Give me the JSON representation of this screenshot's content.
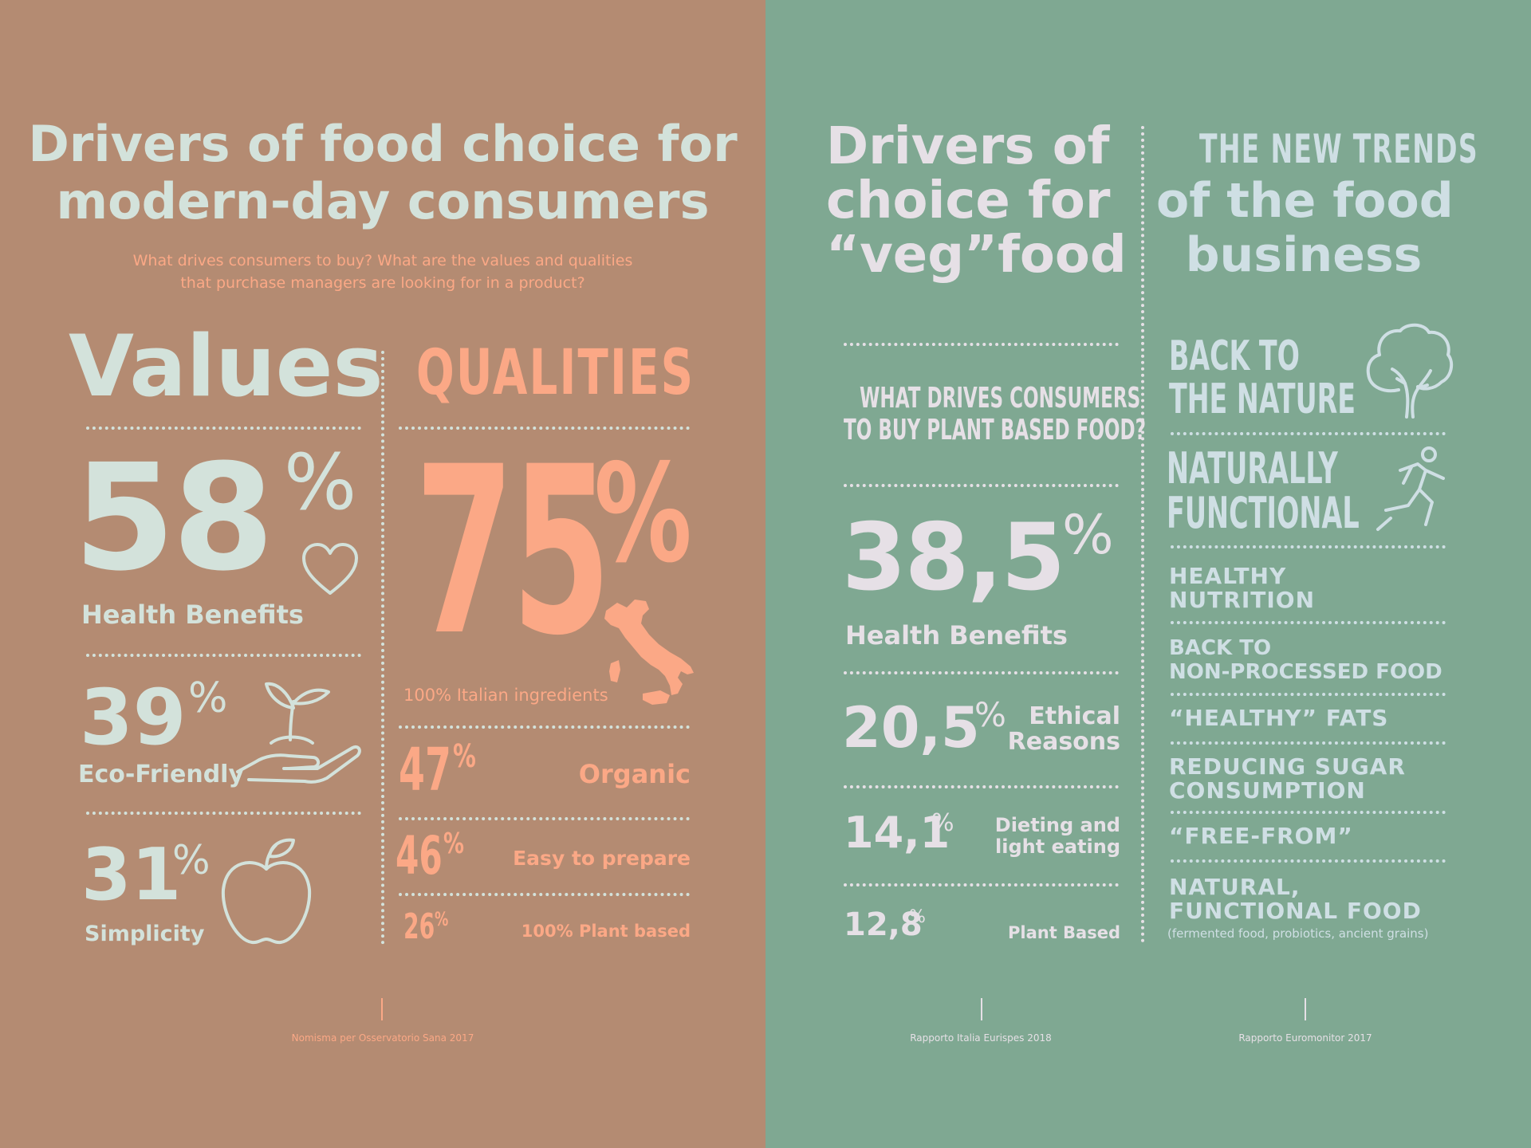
{
  "left": {
    "title_line1": "Drivers of food choice for",
    "title_line2": "modern-day consumers",
    "subtitle_line1": "What drives consumers to buy? What are the values and qualities",
    "subtitle_line2": "that purchase managers are looking for in a product?",
    "values": {
      "heading": "Values",
      "items": [
        {
          "value": "58",
          "pct": "%",
          "label": "Health Benefits",
          "icon": "heart-icon"
        },
        {
          "value": "39",
          "pct": "%",
          "label": "Eco-Friendly",
          "icon": "hand-sprout-icon"
        },
        {
          "value": "31",
          "pct": "%",
          "label": "Simplicity",
          "icon": "apple-icon"
        }
      ]
    },
    "qualities": {
      "heading": "QUALITIES",
      "main": {
        "value": "75",
        "pct": "%",
        "label": "100% Italian ingredients",
        "icon": "italy-map-icon"
      },
      "items": [
        {
          "value": "47",
          "pct": "%",
          "label": "Organic"
        },
        {
          "value": "46",
          "pct": "%",
          "label": "Easy to prepare"
        },
        {
          "value": "26",
          "pct": "%",
          "label": "100% Plant based"
        }
      ]
    },
    "source": "Nomisma per Osservatorio Sana 2017"
  },
  "veg": {
    "title_line1": "Drivers of",
    "title_line2": "choice for",
    "title_line3": "“veg”food",
    "question_line1": "WHAT DRIVES CONSUMERS",
    "question_line2": "TO BUY PLANT BASED FOOD?",
    "main": {
      "value": "38,5",
      "pct": "%",
      "label": "Health Benefits"
    },
    "items": [
      {
        "value": "20,5",
        "pct": "%",
        "label_line1": "Ethical",
        "label_line2": "Reasons"
      },
      {
        "value": "14,1",
        "pct": "%",
        "label_line1": "Dieting and",
        "label_line2": "light eating"
      },
      {
        "value": "12,8",
        "pct": "%",
        "label_line1": "Plant Based",
        "label_line2": ""
      }
    ],
    "source": "Rapporto Italia Eurispes 2018"
  },
  "trends": {
    "title_line1": "THE NEW TRENDS",
    "title_line2": "of the food",
    "title_line3": "business",
    "items": [
      {
        "line1": "BACK TO",
        "line2": "THE NATURE",
        "icon": "tree-icon"
      },
      {
        "line1": "NATURALLY",
        "line2": "FUNCTIONAL",
        "icon": "runner-icon"
      },
      {
        "line1": "HEALTHY",
        "line2": "NUTRITION"
      },
      {
        "line1": "BACK TO",
        "line2": "NON-PROCESSED FOOD"
      },
      {
        "line1": "“HEALTHY” FATS",
        "line2": ""
      },
      {
        "line1": "REDUCING SUGAR",
        "line2": "CONSUMPTION"
      },
      {
        "line1": "“FREE-FROM”",
        "line2": ""
      },
      {
        "line1": "NATURAL,",
        "line2": "FUNCTIONAL FOOD",
        "note": "(fermented food, probiotics, ancient grains)"
      }
    ],
    "source": "Rapporto Euromonitor 2017"
  },
  "colors": {
    "left_bg": "#b48b72",
    "right_bg": "#7fa892",
    "mint": "#d3e2db",
    "peach": "#fba886",
    "lilac": "#e6e0e6",
    "blue": "#cfdfe4"
  }
}
